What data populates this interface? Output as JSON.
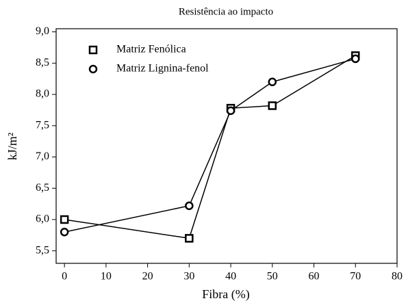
{
  "chart_data": {
    "type": "line",
    "title": "Resistência ao impacto",
    "x_label": "Fibra (%)",
    "y_label": "kJ/m²",
    "x": [
      0,
      30,
      40,
      50,
      70
    ],
    "series": [
      {
        "name": "Matriz Fenólica",
        "color": "#000000",
        "marker": "square",
        "values": [
          6.0,
          5.7,
          7.78,
          7.82,
          8.62
        ]
      },
      {
        "name": "Matriz Lignina-fenol",
        "color": "#000000",
        "marker": "circle",
        "values": [
          5.8,
          6.22,
          7.74,
          8.2,
          8.57
        ]
      }
    ],
    "xlim": [
      -2,
      80
    ],
    "xticks": [
      0,
      10,
      20,
      30,
      40,
      50,
      60,
      70,
      80
    ],
    "ylim": [
      5.3,
      9.05
    ],
    "yticks": [
      {
        "value": 5.5,
        "label": "5,5"
      },
      {
        "value": 6,
        "label": "6,0"
      },
      {
        "value": 6.5,
        "label": "6,5"
      },
      {
        "value": 7,
        "label": "7,0"
      },
      {
        "value": 7.5,
        "label": "7,5"
      },
      {
        "value": 8,
        "label": "8,0"
      },
      {
        "value": 8.5,
        "label": "8,5"
      },
      {
        "value": 9,
        "label": "9,0"
      }
    ],
    "legend": "upper-left"
  }
}
